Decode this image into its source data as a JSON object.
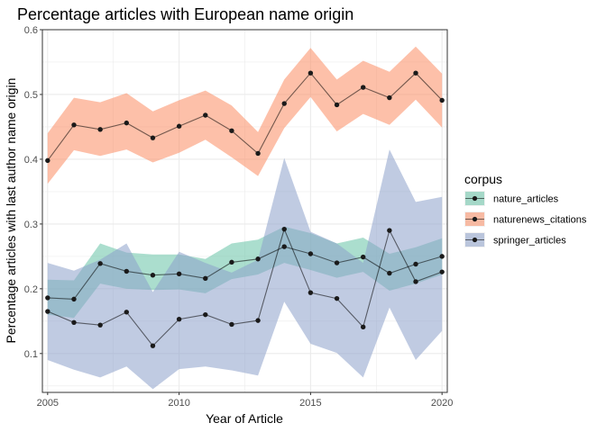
{
  "chart_data": {
    "type": "line",
    "title": "Percentage articles with European name origin",
    "xlabel": "Year of Article",
    "ylabel": "Percentage articles with last author name origin",
    "xlim": [
      2004.8,
      2020.2
    ],
    "ylim": [
      0.04,
      0.6
    ],
    "x_ticks": [
      2005,
      2010,
      2015,
      2020
    ],
    "y_ticks": [
      0.1,
      0.2,
      0.3,
      0.4,
      0.5,
      0.6
    ],
    "grid": true,
    "legend_title": "corpus",
    "legend_position": "right",
    "x": [
      2005,
      2006,
      2007,
      2008,
      2009,
      2010,
      2011,
      2012,
      2013,
      2014,
      2015,
      2016,
      2017,
      2018,
      2019,
      2020
    ],
    "series": [
      {
        "name": "nature_articles",
        "color": "#66c2a5",
        "values": [
          0.186,
          0.184,
          0.239,
          0.227,
          0.221,
          0.223,
          0.216,
          0.241,
          0.246,
          0.265,
          0.254,
          0.24,
          0.249,
          0.224,
          0.238,
          0.25
        ],
        "lower": [
          0.16,
          0.155,
          0.208,
          0.2,
          0.198,
          0.199,
          0.193,
          0.215,
          0.222,
          0.24,
          0.229,
          0.217,
          0.226,
          0.197,
          0.208,
          0.222
        ],
        "upper": [
          0.214,
          0.213,
          0.27,
          0.256,
          0.253,
          0.253,
          0.246,
          0.27,
          0.276,
          0.296,
          0.286,
          0.27,
          0.279,
          0.254,
          0.264,
          0.278
        ]
      },
      {
        "name": "naturenews_citations",
        "color": "#fc8d62",
        "values": [
          0.398,
          0.453,
          0.446,
          0.456,
          0.433,
          0.451,
          0.468,
          0.444,
          0.409,
          0.486,
          0.533,
          0.484,
          0.511,
          0.495,
          0.533,
          0.491
        ],
        "lower": [
          0.362,
          0.414,
          0.405,
          0.415,
          0.395,
          0.41,
          0.43,
          0.403,
          0.374,
          0.448,
          0.496,
          0.443,
          0.47,
          0.453,
          0.492,
          0.449
        ],
        "upper": [
          0.44,
          0.495,
          0.488,
          0.502,
          0.474,
          0.491,
          0.506,
          0.483,
          0.442,
          0.523,
          0.572,
          0.523,
          0.552,
          0.535,
          0.574,
          0.532
        ]
      },
      {
        "name": "springer_articles",
        "color": "#8da0cb",
        "values": [
          0.165,
          0.148,
          0.144,
          0.164,
          0.112,
          0.153,
          0.16,
          0.145,
          0.151,
          0.292,
          0.194,
          0.185,
          0.141,
          0.29,
          0.211,
          0.226
        ],
        "lower": [
          0.09,
          0.075,
          0.063,
          0.08,
          0.045,
          0.076,
          0.08,
          0.074,
          0.066,
          0.18,
          0.115,
          0.101,
          0.063,
          0.171,
          0.09,
          0.135
        ],
        "upper": [
          0.24,
          0.228,
          0.245,
          0.27,
          0.195,
          0.257,
          0.24,
          0.225,
          0.245,
          0.402,
          0.288,
          0.27,
          0.24,
          0.415,
          0.334,
          0.342
        ]
      }
    ]
  }
}
